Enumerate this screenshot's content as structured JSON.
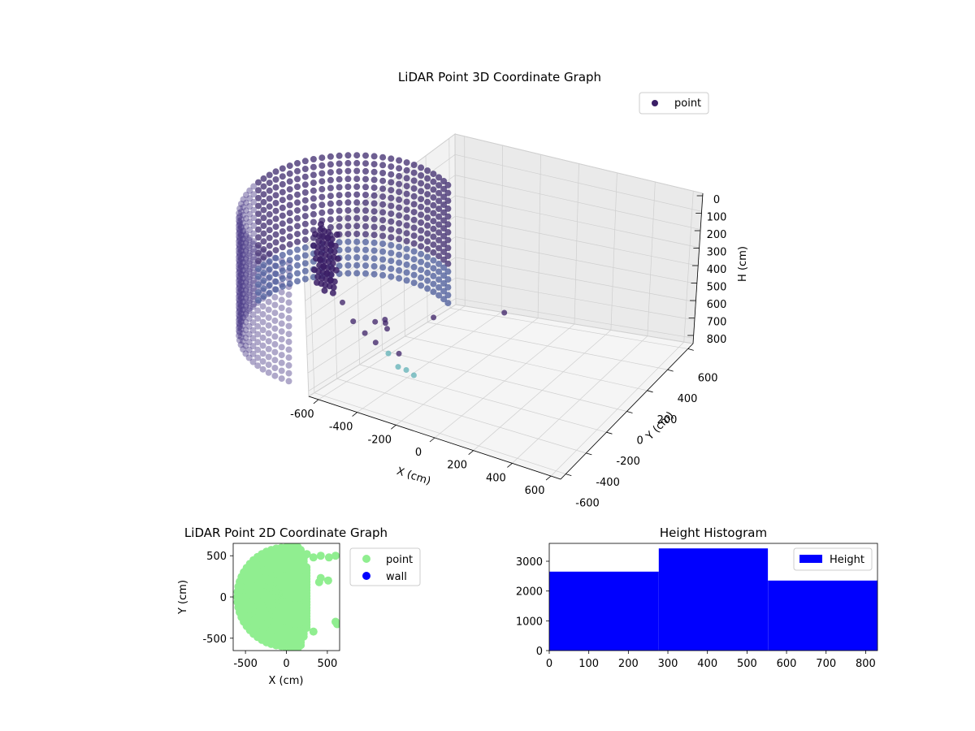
{
  "colors": {
    "wall_near": "#3e2a6e",
    "wall_far": "#4e3f8a",
    "wall_mid": "#4a5a9a",
    "scatter_dark": "#3b1f66",
    "scatter_teal": "#5fb0b6",
    "point_2d": "#90ee90",
    "wall_2d": "#0000ff",
    "histogram": "#0000ff",
    "pane": "#f2f2f2",
    "grid": "#cfcfcf"
  },
  "chart_data": [
    {
      "type": "scatter",
      "projection": "3d",
      "title": "LiDAR Point 3D Coordinate Graph",
      "xlabel": "X (cm)",
      "ylabel": "Y (cm)",
      "zlabel": "H (cm)",
      "legend": {
        "entries": [
          "point"
        ],
        "placement": "top-right"
      },
      "x_ticks": [
        "-600",
        "-400",
        "-200",
        "0",
        "200",
        "400",
        "600"
      ],
      "y_ticks": [
        "-600",
        "-400",
        "-200",
        "0",
        "200",
        "400",
        "600"
      ],
      "z_ticks": [
        "0",
        "100",
        "200",
        "300",
        "400",
        "500",
        "600",
        "700",
        "800"
      ],
      "xlim": [
        -650,
        650
      ],
      "ylim": [
        -650,
        650
      ],
      "zlim": [
        0,
        830
      ],
      "z_inverted": true,
      "wall_points": {
        "shape": "cylinder",
        "radius_cm": 600,
        "arc_deg": [
          90,
          300
        ],
        "h_range": [
          50,
          800
        ]
      },
      "outliers": [
        {
          "x": 250,
          "y": 450,
          "h": 300
        },
        {
          "x": 300,
          "y": 420,
          "h": 420
        },
        {
          "x": 350,
          "y": 380,
          "h": 500
        },
        {
          "x": 400,
          "y": 350,
          "h": 560
        },
        {
          "x": 450,
          "y": 300,
          "h": 640
        },
        {
          "x": 500,
          "y": 280,
          "h": 720
        },
        {
          "x": 520,
          "y": 230,
          "h": 760
        },
        {
          "x": 550,
          "y": 200,
          "h": 800
        },
        {
          "x": 420,
          "y": 150,
          "h": 730
        },
        {
          "x": 300,
          "y": 100,
          "h": 600
        },
        {
          "x": 200,
          "y": 50,
          "h": 650
        },
        {
          "x": 180,
          "y": -100,
          "h": 780
        },
        {
          "x": 100,
          "y": -200,
          "h": 800
        },
        {
          "x": 350,
          "y": -300,
          "h": 760
        },
        {
          "x": 600,
          "y": -620,
          "h": 820
        }
      ]
    },
    {
      "type": "scatter",
      "title": "LiDAR Point 2D Coordinate Graph",
      "xlabel": "X (cm)",
      "ylabel": "Y (cm)",
      "xlim": [
        -650,
        650
      ],
      "ylim": [
        -650,
        650
      ],
      "x_ticks": [
        -500,
        0,
        500
      ],
      "y_ticks": [
        -500,
        0,
        500
      ],
      "series": [
        {
          "name": "point",
          "color": "#90ee90"
        },
        {
          "name": "wall",
          "color": "#0000ff"
        }
      ],
      "legend": {
        "entries": [
          "point",
          "wall"
        ],
        "placement": "outside-right"
      }
    },
    {
      "type": "bar",
      "title": "Height Histogram",
      "bins": [
        [
          0,
          277
        ],
        [
          277,
          553
        ],
        [
          553,
          830
        ]
      ],
      "counts": [
        2650,
        3430,
        2350
      ],
      "xlim": [
        0,
        830
      ],
      "ylim": [
        0,
        3600
      ],
      "x_ticks": [
        0,
        100,
        200,
        300,
        400,
        500,
        600,
        700,
        800
      ],
      "y_ticks": [
        0,
        1000,
        2000,
        3000
      ],
      "series": [
        {
          "name": "Height",
          "color": "#0000ff"
        }
      ],
      "legend": {
        "entries": [
          "Height"
        ],
        "placement": "top-right"
      }
    }
  ]
}
